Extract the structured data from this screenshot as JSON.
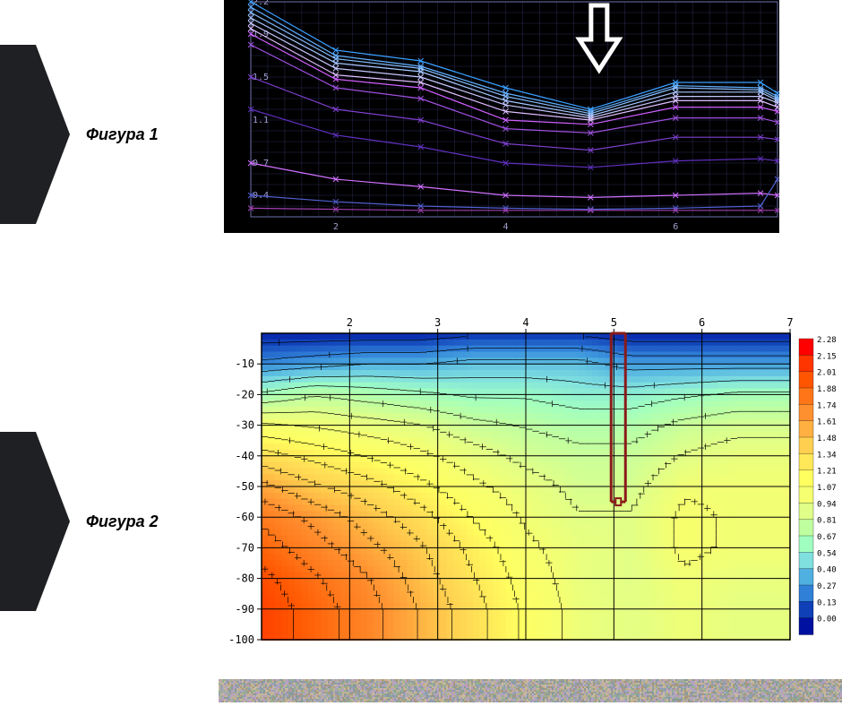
{
  "labels": {
    "fig1": "Фигура 1",
    "fig2": "Фигура 2"
  },
  "chevron_color": "#1f2023",
  "chart1": {
    "type": "line",
    "background": "#000000",
    "grid_color": "#2a2a55",
    "axis_color": "#7070b0",
    "tick_color": "#a0a0d0",
    "xlim": [
      1,
      7.2
    ],
    "ylim": [
      0.2,
      2.2
    ],
    "y_ticks": [
      "2.2",
      "1.9",
      "1.5",
      "1.1",
      "0.7",
      "0.4"
    ],
    "y_tick_vals": [
      2.2,
      1.9,
      1.5,
      1.1,
      0.7,
      0.4
    ],
    "x_ticks": [
      "2",
      "4",
      "6"
    ],
    "x_tick_vals": [
      2,
      4,
      6
    ],
    "arrow": {
      "x": 5.1,
      "color": "#ffffff"
    },
    "series": [
      {
        "color": "#3aa0ff",
        "y": [
          2.2,
          1.75,
          1.65,
          1.4,
          1.2,
          1.45,
          1.45,
          1.35
        ]
      },
      {
        "color": "#60b0ff",
        "y": [
          2.15,
          1.7,
          1.6,
          1.35,
          1.18,
          1.42,
          1.4,
          1.32
        ]
      },
      {
        "color": "#88c0ff",
        "y": [
          2.1,
          1.67,
          1.58,
          1.32,
          1.16,
          1.4,
          1.38,
          1.3
        ]
      },
      {
        "color": "#a8c8ff",
        "y": [
          2.05,
          1.63,
          1.55,
          1.28,
          1.14,
          1.36,
          1.36,
          1.28
        ]
      },
      {
        "color": "#c8c8ff",
        "y": [
          2.0,
          1.58,
          1.5,
          1.24,
          1.12,
          1.32,
          1.32,
          1.26
        ]
      },
      {
        "color": "#e0c0ff",
        "y": [
          1.95,
          1.52,
          1.45,
          1.18,
          1.1,
          1.28,
          1.28,
          1.22
        ]
      },
      {
        "color": "#d060ff",
        "y": [
          1.9,
          1.48,
          1.4,
          1.1,
          1.06,
          1.22,
          1.22,
          1.18
        ]
      },
      {
        "color": "#a050e0",
        "y": [
          1.8,
          1.4,
          1.3,
          1.02,
          0.98,
          1.12,
          1.12,
          1.08
        ]
      },
      {
        "color": "#8040d0",
        "y": [
          1.5,
          1.2,
          1.1,
          0.88,
          0.82,
          0.94,
          0.94,
          0.92
        ]
      },
      {
        "color": "#6030c0",
        "y": [
          1.2,
          0.96,
          0.85,
          0.7,
          0.66,
          0.72,
          0.74,
          0.72
        ]
      },
      {
        "color": "#d070ff",
        "y": [
          0.7,
          0.55,
          0.48,
          0.4,
          0.38,
          0.4,
          0.42,
          0.4
        ]
      },
      {
        "color": "#5060d0",
        "y": [
          0.4,
          0.34,
          0.3,
          0.28,
          0.27,
          0.28,
          0.3,
          0.55
        ]
      },
      {
        "color": "#a040b0",
        "y": [
          0.28,
          0.27,
          0.26,
          0.26,
          0.26,
          0.26,
          0.26,
          0.26
        ]
      }
    ],
    "series_x": [
      1,
      2,
      3,
      4,
      5,
      6,
      7,
      7.2
    ]
  },
  "chart2": {
    "type": "heatmap",
    "background": "#ffffff",
    "grid_color": "#000000",
    "tick_font": 12,
    "xlim": [
      1,
      7
    ],
    "ylim": [
      -100,
      0
    ],
    "x_ticks": [
      "2",
      "3",
      "4",
      "5",
      "6",
      "7"
    ],
    "x_tick_vals": [
      2,
      3,
      4,
      5,
      6,
      7
    ],
    "y_ticks": [
      "-10",
      "-20",
      "-30",
      "-40",
      "-50",
      "-60",
      "-70",
      "-80",
      "-90",
      "-100"
    ],
    "y_tick_vals": [
      -10,
      -20,
      -30,
      -40,
      -50,
      -60,
      -70,
      -80,
      -90,
      -100
    ],
    "colorbar": {
      "labels": [
        "2.28",
        "2.15",
        "2.01",
        "1.88",
        "1.74",
        "1.61",
        "1.48",
        "1.34",
        "1.21",
        "1.07",
        "0.94",
        "0.81",
        "0.67",
        "0.54",
        "0.40",
        "0.27",
        "0.13",
        "0.00"
      ],
      "colors": [
        "#ff0000",
        "#ff3500",
        "#ff5500",
        "#ff7518",
        "#ff9030",
        "#ffb040",
        "#ffd050",
        "#ffe858",
        "#ffff60",
        "#f5ff70",
        "#e0ff88",
        "#c0ffa0",
        "#a0ffc0",
        "#80e0e0",
        "#50b0e0",
        "#3080d8",
        "#1040b8",
        "#0010a0"
      ]
    },
    "cells_x": [
      1,
      1.6,
      2.2,
      2.8,
      3.4,
      4.0,
      4.6,
      5.2,
      5.8,
      6.4,
      7.0
    ],
    "cells_y": [
      0,
      -10,
      -20,
      -30,
      -40,
      -50,
      -60,
      -70,
      -80,
      -90,
      -100
    ],
    "cells": [
      [
        0.05,
        0.05,
        0.05,
        0.05,
        0.1,
        0.1,
        0.1,
        0.05,
        0.05,
        0.05
      ],
      [
        0.3,
        0.35,
        0.4,
        0.4,
        0.45,
        0.45,
        0.45,
        0.35,
        0.35,
        0.35
      ],
      [
        0.7,
        0.8,
        0.75,
        0.7,
        0.65,
        0.65,
        0.6,
        0.6,
        0.65,
        0.7
      ],
      [
        1.1,
        1.05,
        1.0,
        0.95,
        0.85,
        0.8,
        0.75,
        0.75,
        0.85,
        0.9
      ],
      [
        1.4,
        1.3,
        1.2,
        1.1,
        1.0,
        0.9,
        0.85,
        0.85,
        0.95,
        1.0
      ],
      [
        1.65,
        1.5,
        1.4,
        1.25,
        1.1,
        1.0,
        0.9,
        0.9,
        1.05,
        1.05
      ],
      [
        1.85,
        1.7,
        1.55,
        1.4,
        1.2,
        1.05,
        0.95,
        0.95,
        1.1,
        1.05
      ],
      [
        1.95,
        1.8,
        1.65,
        1.5,
        1.3,
        1.1,
        1.0,
        0.95,
        1.1,
        1.05
      ],
      [
        2.05,
        1.9,
        1.75,
        1.55,
        1.35,
        1.15,
        1.0,
        0.95,
        1.05,
        1.0
      ],
      [
        2.1,
        1.95,
        1.8,
        1.6,
        1.4,
        1.18,
        1.02,
        0.96,
        1.03,
        0.98
      ]
    ],
    "contour_color": "#000000",
    "probe": {
      "x": 5.05,
      "y_top": 0,
      "y_bot": -55,
      "color": "#8a1a1a",
      "width": 6
    }
  },
  "noise_bar": {
    "colors": [
      "#8a9a9a",
      "#b0a8c0",
      "#c8b8a0",
      "#98b090",
      "#a89880",
      "#b8a0c0",
      "#90a0b0",
      "#c0b090"
    ]
  }
}
